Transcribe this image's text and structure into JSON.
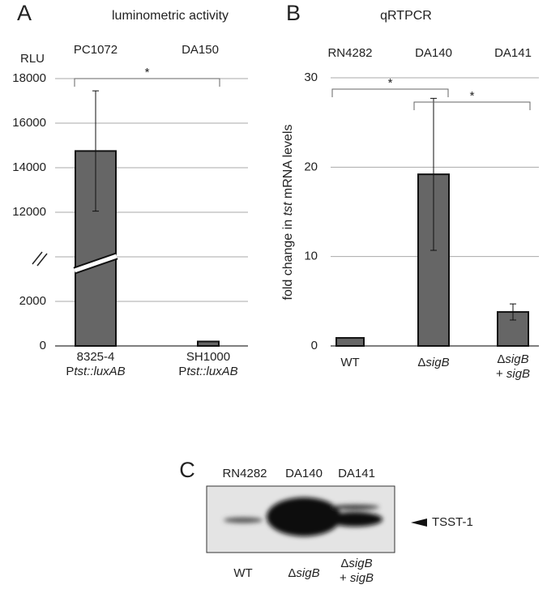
{
  "chart_data": [
    {
      "type": "bar",
      "panel": "A",
      "title": "luminometric activity",
      "ylabel": "RLU",
      "strains": [
        "PC1072",
        "DA150"
      ],
      "categories": [
        "8325-4",
        "SH1000"
      ],
      "categories_line2": [
        {
          "prefix": "P",
          "italic": "tst::luxAB"
        },
        {
          "prefix": "P",
          "italic": "tst::luxAB"
        }
      ],
      "values": [
        14750,
        200
      ],
      "errors": [
        2700,
        null
      ],
      "color": "#666666",
      "ylim": [
        0,
        18000
      ],
      "ybreak": [
        4000,
        10000
      ],
      "yticks": [
        0,
        2000,
        12000,
        14000,
        16000,
        18000
      ],
      "grid": true,
      "brackets": [
        {
          "label": "*"
        }
      ]
    },
    {
      "type": "bar",
      "panel": "B",
      "title": "qRTPCR",
      "ylabel": {
        "before": "fold change in ",
        "italic": "tst",
        "after": " mRNA levels"
      },
      "strains": [
        "RN4282",
        "DA140",
        "DA141"
      ],
      "categories": [
        "WT",
        {
          "prefix": "Δ",
          "italic": "sigB"
        },
        {
          "prefix": "Δ",
          "italic": "sigB"
        }
      ],
      "categories_line2": [
        null,
        null,
        {
          "prefix": "+ ",
          "italic": "sigB"
        }
      ],
      "values": [
        0.9,
        19.2,
        3.8
      ],
      "errors": [
        null,
        8.5,
        0.9
      ],
      "color": "#666666",
      "ylim": [
        0,
        30
      ],
      "yticks": [
        0,
        10,
        20,
        30
      ],
      "grid": true,
      "brackets": [
        {
          "label": "*"
        },
        {
          "label": "*"
        }
      ]
    }
  ],
  "blot": {
    "panel": "C",
    "strains": [
      "RN4282",
      "DA140",
      "DA141"
    ],
    "band_label": "TSST-1",
    "lanes": [
      "WT",
      {
        "prefix": "Δ",
        "italic": "sigB"
      },
      {
        "prefix": "Δ",
        "italic": "sigB"
      }
    ],
    "lanes_line2": [
      null,
      null,
      {
        "prefix": "+ ",
        "italic": "sigB"
      }
    ]
  }
}
